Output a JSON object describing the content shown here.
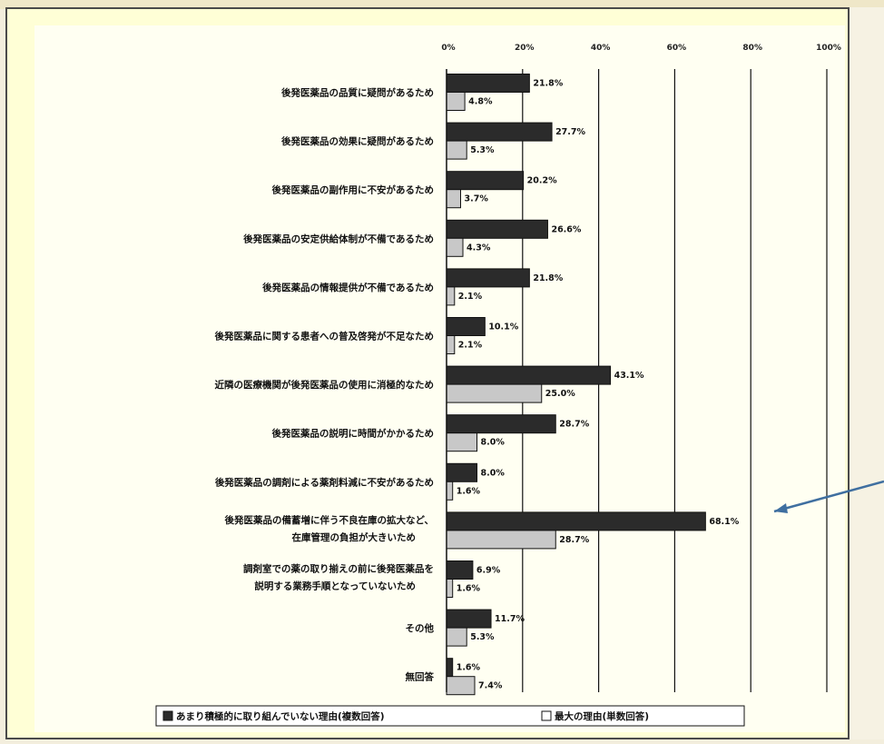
{
  "chart_data": {
    "type": "bar",
    "orientation": "horizontal",
    "xlim": [
      0,
      100
    ],
    "x_ticks": [
      "0%",
      "20%",
      "40%",
      "60%",
      "80%",
      "100%"
    ],
    "categories": [
      [
        "後発医薬品の品質に疑問があるため"
      ],
      [
        "後発医薬品の効果に疑問があるため"
      ],
      [
        "後発医薬品の副作用に不安があるため"
      ],
      [
        "後発医薬品の安定供給体制が不備であるため"
      ],
      [
        "後発医薬品の情報提供が不備であるため"
      ],
      [
        "後発医薬品に関する患者への普及啓発が不足なため"
      ],
      [
        "近隣の医療機関が後発医薬品の使用に消極的なため"
      ],
      [
        "後発医薬品の説明に時間がかかるため"
      ],
      [
        "後発医薬品の調剤による薬剤料減に不安があるため"
      ],
      [
        "後発医薬品の備蓄増に伴う不良在庫の拡大など、",
        "在庫管理の負担が大きいため"
      ],
      [
        "調剤室での薬の取り揃えの前に後発医薬品を",
        "説明する業務手順となっていないため"
      ],
      [
        "その他"
      ],
      [
        "無回答"
      ]
    ],
    "series": [
      {
        "name": "あまり積極的に取り組んでいない理由(複数回答)",
        "color": "#2b2b2b",
        "values": [
          21.8,
          27.7,
          20.2,
          26.6,
          21.8,
          10.1,
          43.1,
          28.7,
          8.0,
          68.1,
          6.9,
          11.7,
          1.6
        ],
        "labels": [
          "21.8%",
          "27.7%",
          "20.2%",
          "26.6%",
          "21.8%",
          "10.1%",
          "43.1%",
          "28.7%",
          "8.0%",
          "68.1%",
          "6.9%",
          "11.7%",
          "1.6%"
        ]
      },
      {
        "name": "最大の理由(単数回答)",
        "color": "#c8c8c8",
        "values": [
          4.8,
          5.3,
          3.7,
          4.3,
          2.1,
          2.1,
          25.0,
          8.0,
          1.6,
          28.7,
          1.6,
          5.3,
          7.4
        ],
        "labels": [
          "4.8%",
          "5.3%",
          "3.7%",
          "4.3%",
          "2.1%",
          "2.1%",
          "25.0%",
          "8.0%",
          "1.6%",
          "28.7%",
          "1.6%",
          "5.3%",
          "7.4%"
        ]
      }
    ],
    "legend": {
      "position": "bottom",
      "items": [
        "あまり積極的に取り組んでいない理由(複数回答)",
        "最大の理由(単数回答)"
      ]
    },
    "grid": true
  },
  "annotation": {
    "arrow_color": "#3f6fa0"
  }
}
